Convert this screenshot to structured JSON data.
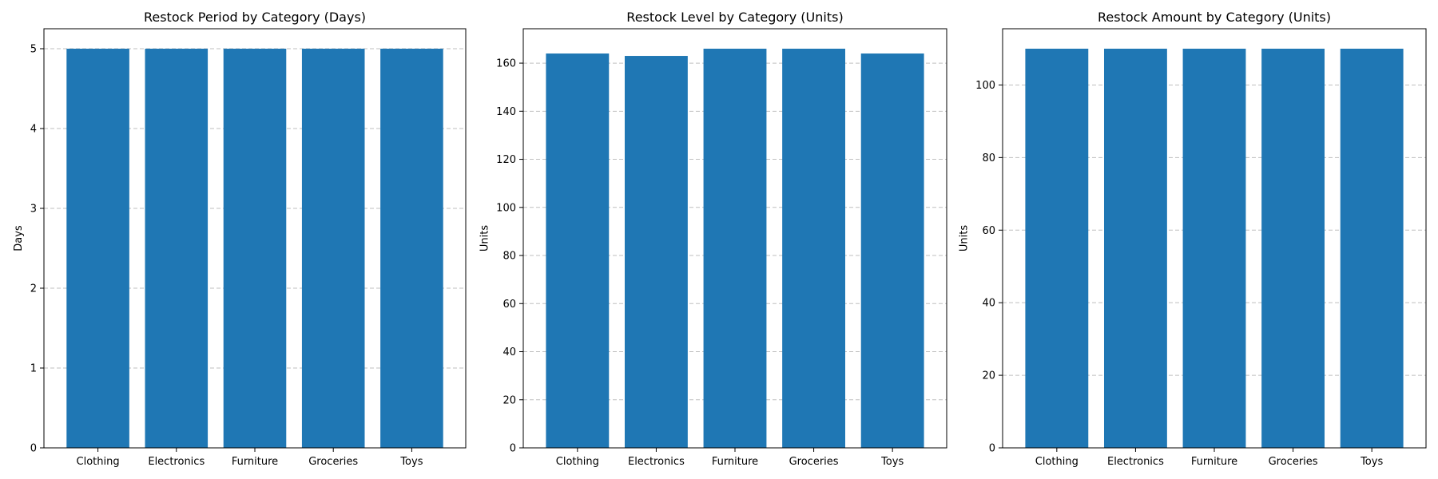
{
  "chart_data": [
    {
      "type": "bar",
      "title": "Restock Period by Category (Days)",
      "xlabel": "",
      "ylabel": "Days",
      "categories": [
        "Clothing",
        "Electronics",
        "Furniture",
        "Groceries",
        "Toys"
      ],
      "values": [
        5,
        5,
        5,
        5,
        5
      ],
      "ylim": [
        0,
        5.25
      ],
      "yticks": [
        0,
        1,
        2,
        3,
        4,
        5
      ],
      "grid": "y-dashed",
      "color": "#1f77b4"
    },
    {
      "type": "bar",
      "title": "Restock Level by Category (Units)",
      "xlabel": "",
      "ylabel": "Units",
      "categories": [
        "Clothing",
        "Electronics",
        "Furniture",
        "Groceries",
        "Toys"
      ],
      "values": [
        164,
        163,
        166,
        166,
        164
      ],
      "ylim": [
        0,
        174.3
      ],
      "yticks": [
        0,
        20,
        40,
        60,
        80,
        100,
        120,
        140,
        160
      ],
      "grid": "y-dashed",
      "color": "#1f77b4"
    },
    {
      "type": "bar",
      "title": "Restock Amount by Category (Units)",
      "xlabel": "",
      "ylabel": "Units",
      "categories": [
        "Clothing",
        "Electronics",
        "Furniture",
        "Groceries",
        "Toys"
      ],
      "values": [
        110,
        110,
        110,
        110,
        110
      ],
      "ylim": [
        0,
        115.5
      ],
      "yticks": [
        0,
        20,
        40,
        60,
        80,
        100
      ],
      "grid": "y-dashed",
      "color": "#1f77b4"
    }
  ]
}
